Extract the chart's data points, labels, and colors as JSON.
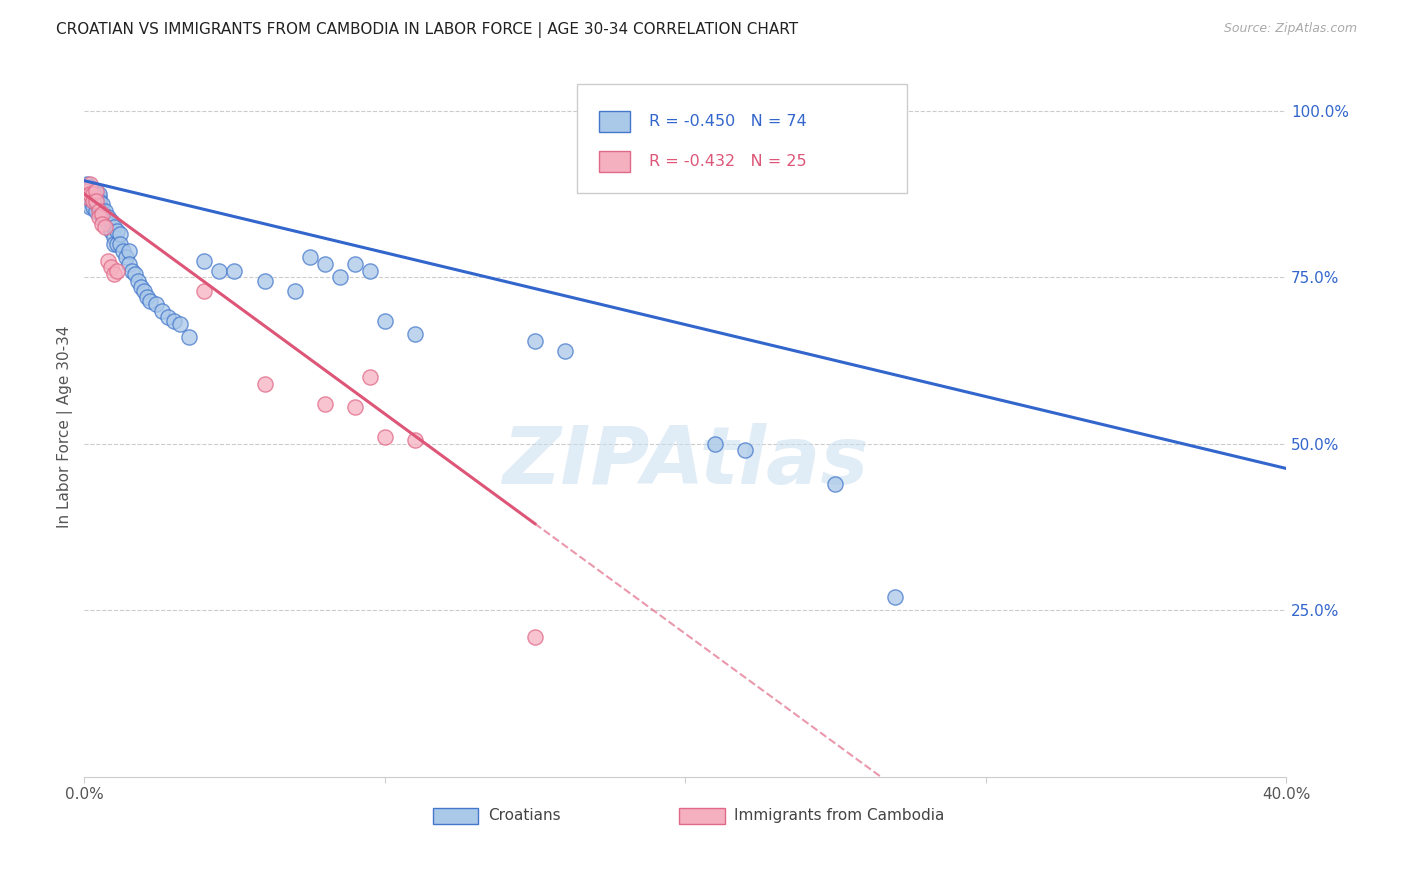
{
  "title": "CROATIAN VS IMMIGRANTS FROM CAMBODIA IN LABOR FORCE | AGE 30-34 CORRELATION CHART",
  "source": "Source: ZipAtlas.com",
  "ylabel": "In Labor Force | Age 30-34",
  "blue_label": "Croatians",
  "pink_label": "Immigrants from Cambodia",
  "blue_R": -0.45,
  "blue_N": 74,
  "pink_R": -0.432,
  "pink_N": 25,
  "blue_color": "#aac8e8",
  "pink_color": "#f5b0c0",
  "blue_edge_color": "#4477cc",
  "pink_edge_color": "#e06888",
  "blue_line_color": "#3366cc",
  "pink_line_color": "#dd5577",
  "watermark": "ZIPAtlas",
  "watermark_color": "#c8ddf0",
  "bg_color": "#ffffff",
  "grid_color": "#cccccc",
  "title_color": "#222222",
  "axis_label_color": "#555555",
  "right_axis_color": "#3366cc",
  "xlim": [
    0.0,
    0.4
  ],
  "ylim": [
    0.0,
    1.05
  ],
  "blue_x": [
    0.001,
    0.001,
    0.001,
    0.002,
    0.002,
    0.002,
    0.002,
    0.002,
    0.003,
    0.003,
    0.003,
    0.003,
    0.003,
    0.003,
    0.004,
    0.004,
    0.004,
    0.004,
    0.005,
    0.005,
    0.005,
    0.005,
    0.005,
    0.006,
    0.006,
    0.006,
    0.007,
    0.007,
    0.008,
    0.008,
    0.009,
    0.009,
    0.01,
    0.01,
    0.01,
    0.011,
    0.011,
    0.012,
    0.012,
    0.013,
    0.014,
    0.015,
    0.015,
    0.016,
    0.017,
    0.018,
    0.019,
    0.02,
    0.021,
    0.022,
    0.024,
    0.026,
    0.028,
    0.03,
    0.032,
    0.035,
    0.04,
    0.045,
    0.05,
    0.06,
    0.07,
    0.075,
    0.08,
    0.085,
    0.09,
    0.095,
    0.1,
    0.11,
    0.15,
    0.16,
    0.21,
    0.22,
    0.25,
    0.27
  ],
  "blue_y": [
    0.88,
    0.87,
    0.89,
    0.875,
    0.865,
    0.885,
    0.855,
    0.87,
    0.88,
    0.87,
    0.86,
    0.875,
    0.865,
    0.855,
    0.875,
    0.86,
    0.87,
    0.85,
    0.87,
    0.86,
    0.855,
    0.875,
    0.865,
    0.86,
    0.85,
    0.84,
    0.85,
    0.84,
    0.84,
    0.83,
    0.835,
    0.82,
    0.825,
    0.81,
    0.8,
    0.82,
    0.8,
    0.815,
    0.8,
    0.79,
    0.78,
    0.79,
    0.77,
    0.76,
    0.755,
    0.745,
    0.735,
    0.73,
    0.72,
    0.715,
    0.71,
    0.7,
    0.69,
    0.685,
    0.68,
    0.66,
    0.775,
    0.76,
    0.76,
    0.745,
    0.73,
    0.78,
    0.77,
    0.75,
    0.77,
    0.76,
    0.685,
    0.665,
    0.655,
    0.64,
    0.5,
    0.49,
    0.44,
    0.27
  ],
  "pink_x": [
    0.001,
    0.001,
    0.002,
    0.002,
    0.003,
    0.003,
    0.004,
    0.004,
    0.005,
    0.005,
    0.006,
    0.006,
    0.007,
    0.008,
    0.009,
    0.01,
    0.011,
    0.04,
    0.06,
    0.08,
    0.09,
    0.095,
    0.1,
    0.11,
    0.15
  ],
  "pink_y": [
    0.88,
    0.87,
    0.89,
    0.875,
    0.875,
    0.865,
    0.88,
    0.865,
    0.85,
    0.84,
    0.845,
    0.83,
    0.825,
    0.775,
    0.765,
    0.755,
    0.76,
    0.73,
    0.59,
    0.56,
    0.555,
    0.6,
    0.51,
    0.505,
    0.21
  ],
  "blue_line_intercept": 0.895,
  "blue_line_slope": -1.08,
  "pink_line_intercept": 0.875,
  "pink_line_slope": -3.3
}
